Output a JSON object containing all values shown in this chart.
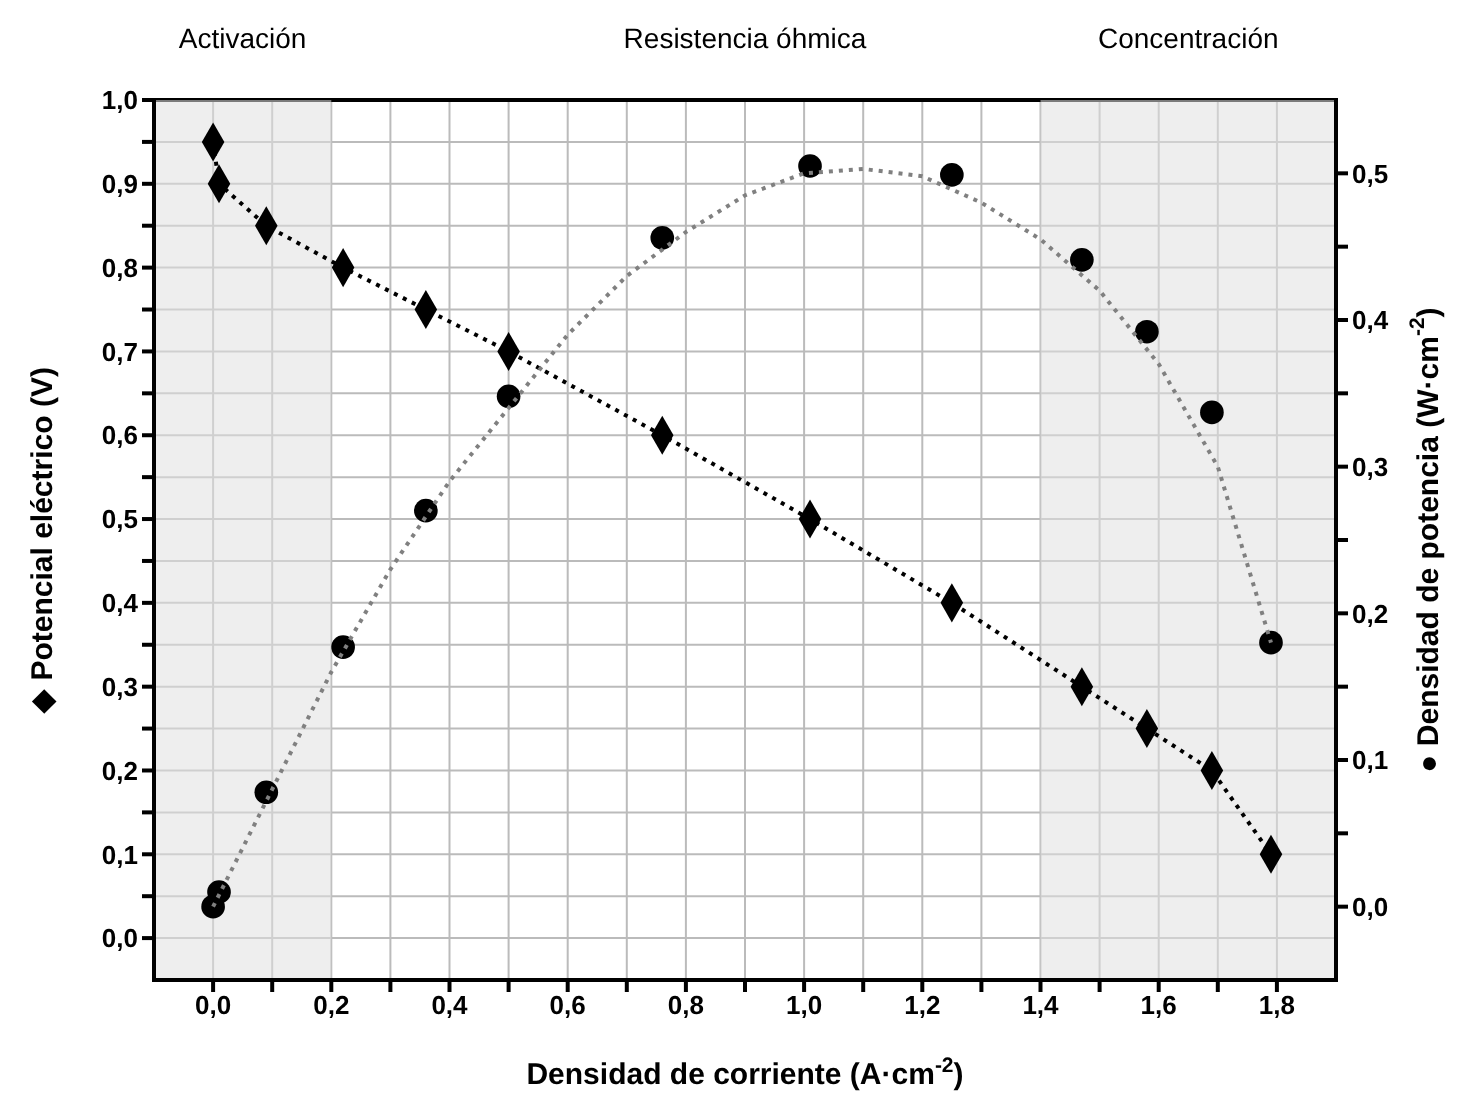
{
  "chart_data": {
    "type": "scatter",
    "xlabel": "Densidad de corriente (A·cm$^{-2}$)",
    "ylabel": "◆ Potencial eléctrico (V)",
    "y2label": "● Densidad de potencia (W·cm$^{-2}$)",
    "xlim": [
      -0.1,
      1.9
    ],
    "xticks": [
      {
        "value": 0,
        "label": "0,0"
      },
      {
        "value": 0.1,
        "label": null
      },
      {
        "value": 0.2,
        "label": "0,2"
      },
      {
        "value": 0.3,
        "label": null
      },
      {
        "value": 0.4,
        "label": "0,4"
      },
      {
        "value": 0.5,
        "label": null
      },
      {
        "value": 0.6,
        "label": "0,6"
      },
      {
        "value": 0.7,
        "label": null
      },
      {
        "value": 0.8,
        "label": "0,8"
      },
      {
        "value": 0.9,
        "label": null
      },
      {
        "value": 1.0,
        "label": "1,0"
      },
      {
        "value": 1.1,
        "label": null
      },
      {
        "value": 1.2,
        "label": "1,2"
      },
      {
        "value": 1.3,
        "label": null
      },
      {
        "value": 1.4,
        "label": "1,4"
      },
      {
        "value": 1.5,
        "label": null
      },
      {
        "value": 1.6,
        "label": "1,6"
      },
      {
        "value": 1.7,
        "label": null
      },
      {
        "value": 1.8,
        "label": "1,8"
      }
    ],
    "ylim": [
      -0.05,
      1.0
    ],
    "yticks": [
      {
        "value": 0,
        "label": "0,0"
      },
      {
        "value": 0.05,
        "label": null
      },
      {
        "value": 0.1,
        "label": "0,1"
      },
      {
        "value": 0.15,
        "label": null
      },
      {
        "value": 0.2,
        "label": "0,2"
      },
      {
        "value": 0.25,
        "label": null
      },
      {
        "value": 0.3,
        "label": "0,3"
      },
      {
        "value": 0.35,
        "label": null
      },
      {
        "value": 0.4,
        "label": "0,4"
      },
      {
        "value": 0.45,
        "label": null
      },
      {
        "value": 0.5,
        "label": "0,5"
      },
      {
        "value": 0.55,
        "label": null
      },
      {
        "value": 0.6,
        "label": "0,6"
      },
      {
        "value": 0.65,
        "label": null
      },
      {
        "value": 0.7,
        "label": "0,7"
      },
      {
        "value": 0.75,
        "label": null
      },
      {
        "value": 0.8,
        "label": "0,8"
      },
      {
        "value": 0.85,
        "label": null
      },
      {
        "value": 0.9,
        "label": "0,9"
      },
      {
        "value": 0.95,
        "label": null
      },
      {
        "value": 1.0,
        "label": "1,0"
      }
    ],
    "y2lim": [
      -0.05,
      0.55
    ],
    "y2ticks": [
      {
        "value": 0,
        "label": "0,0"
      },
      {
        "value": 0.05,
        "label": null
      },
      {
        "value": 0.1,
        "label": "0,1"
      },
      {
        "value": 0.15,
        "label": null
      },
      {
        "value": 0.2,
        "label": "0,2"
      },
      {
        "value": 0.25,
        "label": null
      },
      {
        "value": 0.3,
        "label": "0,3"
      },
      {
        "value": 0.35,
        "label": null
      },
      {
        "value": 0.4,
        "label": "0,4"
      },
      {
        "value": 0.45,
        "label": null
      },
      {
        "value": 0.5,
        "label": "0,5"
      }
    ],
    "grid": true,
    "annotations": [
      "Resistencia óhmica"
    ],
    "bands": [
      {
        "axis": "x",
        "from": -0.1,
        "to": 0.2,
        "label": "Activación",
        "color": "#e0e0e0"
      },
      {
        "axis": "x",
        "from": 1.4,
        "to": 1.9,
        "label": "Concentración",
        "color": "#e0e0e0"
      }
    ],
    "series": [
      {
        "type": "line",
        "color": "#000000",
        "marker": "diamond",
        "line_style": "dotted",
        "x": [
          0.0,
          0.01,
          0.09,
          0.22,
          0.36,
          0.5,
          0.76,
          1.01,
          1.25,
          1.47,
          1.58,
          1.69,
          1.79
        ],
        "values": [
          0.95,
          0.9,
          0.85,
          0.8,
          0.75,
          0.7,
          0.6,
          0.5,
          0.4,
          0.3,
          0.25,
          0.2,
          0.1
        ]
      },
      {
        "type": "scatter",
        "axis": "y2",
        "color": "#000000",
        "marker": "circle",
        "x": [
          0.0,
          0.01,
          0.09,
          0.22,
          0.36,
          0.5,
          0.76,
          1.01,
          1.25,
          1.47,
          1.58,
          1.69,
          1.79
        ],
        "values": [
          0.0,
          0.01,
          0.078,
          0.177,
          0.27,
          0.348,
          0.456,
          0.505,
          0.499,
          0.441,
          0.392,
          0.337,
          0.18
        ]
      },
      {
        "type": "line",
        "axis": "y2",
        "color": "#808080",
        "marker": "none",
        "line_style": "dotted",
        "x": [
          0.0,
          0.1,
          0.2,
          0.3,
          0.4,
          0.5,
          0.6,
          0.7,
          0.8,
          0.9,
          1.0,
          1.1,
          1.2,
          1.3,
          1.4,
          1.5,
          1.6,
          1.7,
          1.79
        ],
        "values": [
          0.0,
          0.08,
          0.16,
          0.23,
          0.29,
          0.34,
          0.39,
          0.43,
          0.46,
          0.485,
          0.5,
          0.503,
          0.498,
          0.48,
          0.455,
          0.42,
          0.37,
          0.3,
          0.18
        ]
      }
    ]
  }
}
